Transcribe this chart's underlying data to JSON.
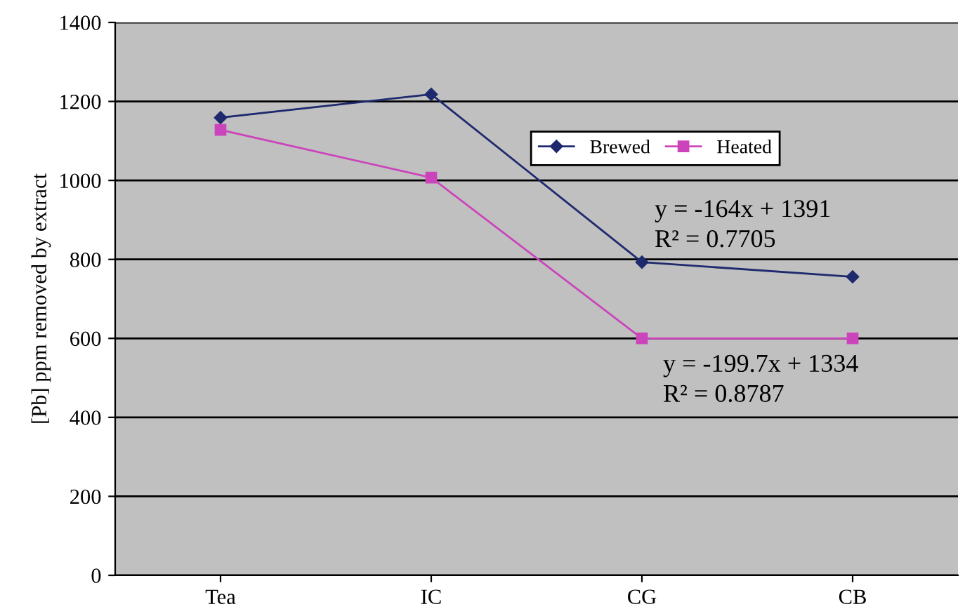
{
  "chart_data": {
    "type": "line",
    "ylabel": "[Pb] ppm removed by extract",
    "categories": [
      "Tea",
      "IC",
      "CG",
      "CB"
    ],
    "series": [
      {
        "name": "Brewed",
        "color": "#1f2a6e",
        "marker": "diamond",
        "values": [
          1159,
          1218,
          793,
          756
        ]
      },
      {
        "name": "Heated",
        "color": "#cc44bb",
        "marker": "square",
        "values": [
          1128,
          1007,
          600,
          600
        ]
      }
    ],
    "ylim": [
      0,
      1400
    ],
    "yticks": [
      0,
      200,
      400,
      600,
      800,
      1000,
      1200,
      1400
    ],
    "grid": "y",
    "legend": "top right",
    "annotations": [
      "y = -164x + 1391\nR² = 0.7705",
      "y = -199.7x + 1334\nR² = 0.8787"
    ]
  }
}
